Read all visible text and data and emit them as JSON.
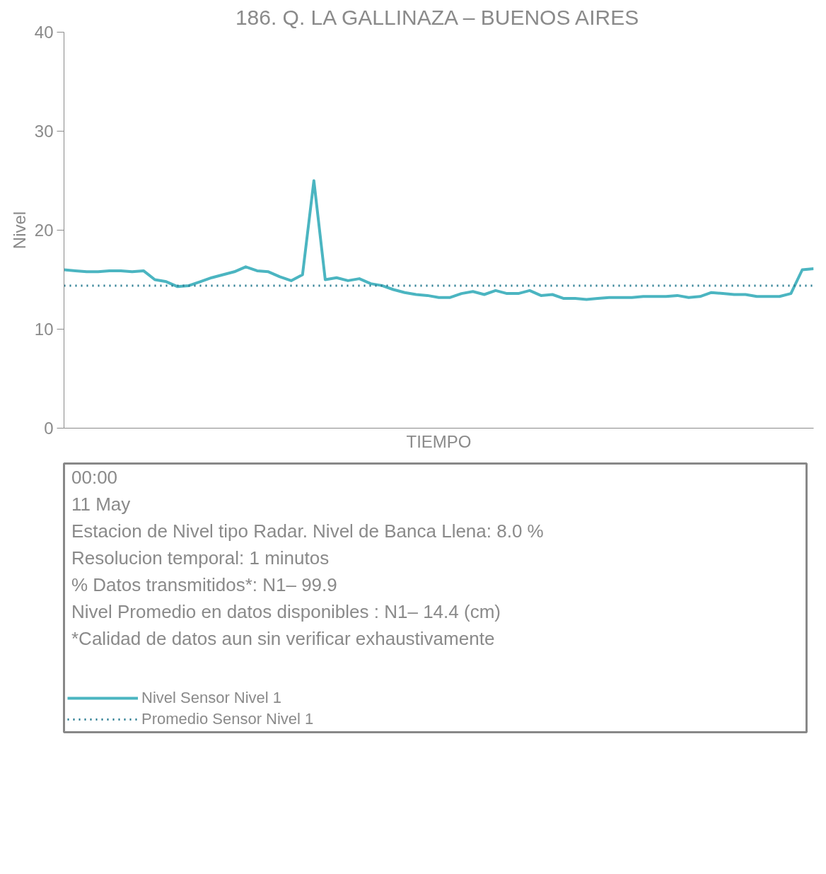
{
  "chart_data": {
    "type": "line",
    "title": "186. Q. LA GALLINAZA – BUENOS AIRES",
    "xlabel": "TIEMPO",
    "ylabel": "Nivel",
    "ylim": [
      0,
      40
    ],
    "yticks": [
      0,
      10,
      20,
      30,
      40
    ],
    "legend": "bottom",
    "line_style": "solid",
    "categories": [
      null,
      null,
      null,
      null,
      null,
      null,
      null,
      null,
      null,
      null,
      null,
      null,
      null,
      null,
      null,
      null,
      null,
      null,
      null,
      null,
      null,
      null,
      null,
      null,
      null,
      null,
      null,
      null,
      null,
      null,
      null,
      null,
      null,
      null,
      null,
      null,
      null,
      null,
      null,
      null,
      null,
      null,
      null,
      null,
      null,
      null,
      null,
      null,
      null,
      null,
      null,
      null,
      null,
      null,
      null,
      null,
      null,
      null,
      null,
      null,
      null,
      null,
      null,
      null,
      null,
      null,
      null
    ],
    "series": [
      {
        "name": "Nivel Sensor Nivel 1",
        "color": "#4bb5c1",
        "values": [
          16.0,
          15.9,
          15.8,
          15.8,
          15.9,
          15.9,
          15.8,
          15.9,
          15.0,
          14.8,
          14.3,
          14.4,
          14.8,
          15.2,
          15.5,
          15.8,
          16.3,
          15.9,
          15.8,
          15.3,
          14.9,
          15.5,
          25,
          15.0,
          15.2,
          14.9,
          15.1,
          14.6,
          14.4,
          14.0,
          13.7,
          13.5,
          13.4,
          13.2,
          13.2,
          13.6,
          13.8,
          13.5,
          13.9,
          13.6,
          13.6,
          13.9,
          13.4,
          13.5,
          13.1,
          13.1,
          13.0,
          13.1,
          13.2,
          13.2,
          13.2,
          13.3,
          13.3,
          13.3,
          13.4,
          13.2,
          13.3,
          13.7,
          13.6,
          13.5,
          13.5,
          13.3,
          13.3,
          13.3,
          13.6,
          16.0,
          16.1
        ]
      }
    ],
    "ref_lines": [
      {
        "axis": "y",
        "value": 14.4,
        "label": "Promedio Sensor Nivel 1",
        "color": "#2b7d92",
        "line_style": "dotted"
      }
    ],
    "annotations": [
      "00:00",
      "11 May",
      "Estacion de Nivel tipo Radar. Nivel de Banca Llena:  8.0 %",
      "Resolucion temporal: 1 minutos",
      "% Datos transmitidos*: N1– 99.9",
      "Nivel Promedio en datos disponibles : N1– 14.4 (cm)",
      "*Calidad de datos aun sin verificar exhaustivamente"
    ]
  }
}
